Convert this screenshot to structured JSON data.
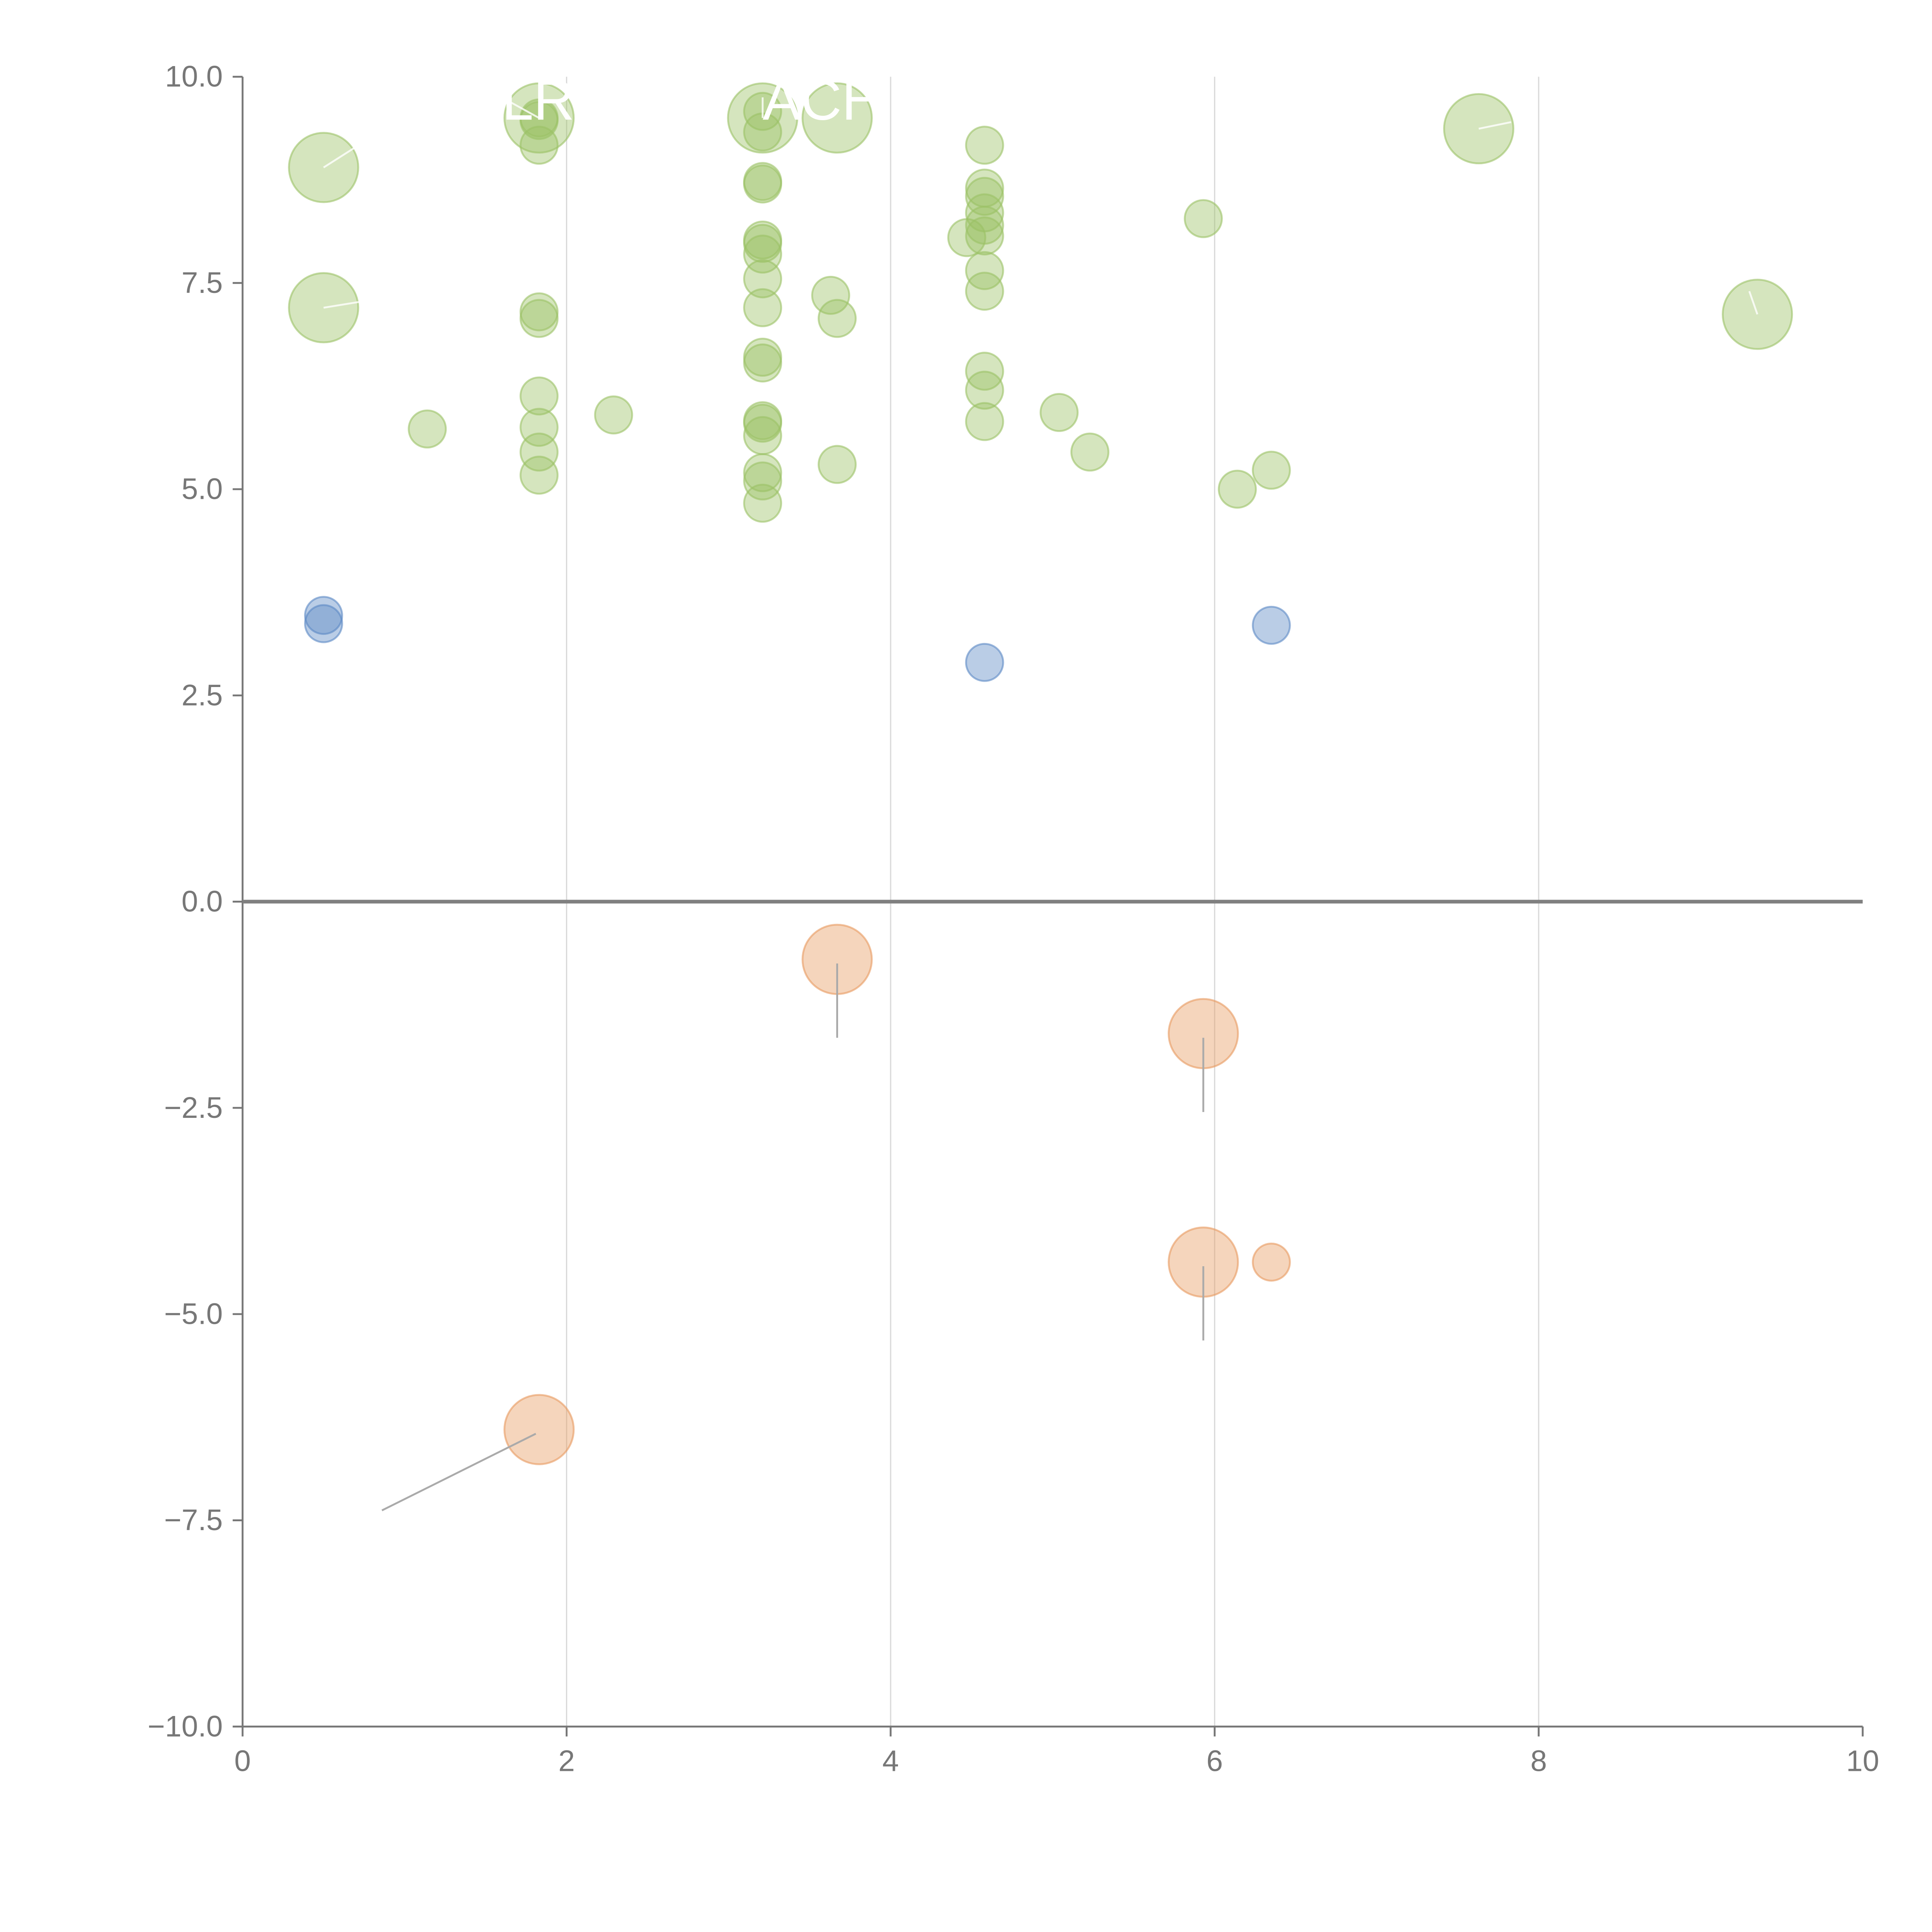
{
  "chart_data": {
    "type": "scatter",
    "title": "",
    "xlabel": "",
    "ylabel": "",
    "xlim": [
      0,
      10
    ],
    "ylim": [
      -10,
      10
    ],
    "x_ticks": [
      0,
      2,
      4,
      6,
      8,
      10
    ],
    "x_tick_labels": [
      "0",
      "2",
      "4",
      "6",
      "8",
      "10"
    ],
    "y_ticks": [
      10,
      7.5,
      5,
      2.5,
      0,
      -2.5,
      -5,
      -7.5,
      -10
    ],
    "y_tick_labels": [
      "10.0",
      "7.5",
      "5.0",
      "2.5",
      "0.0",
      "−2.5",
      "−5.0",
      "−7.5",
      "−10.0"
    ],
    "vertical_grid": true,
    "zero_line": true,
    "colors": {
      "green": "#9bc265",
      "blue": "#5b88c4",
      "orange": "#e89a5f",
      "grid": "#d9d9d9",
      "axis": "#777777",
      "zero": "#808080",
      "leader": "#aaaaaa"
    },
    "series": [
      {
        "name": "green",
        "color": "green",
        "points": [
          [
            0.5,
            8.9,
            2
          ],
          [
            0.5,
            7.2,
            2
          ],
          [
            1.14,
            5.73,
            1
          ],
          [
            1.83,
            9.5,
            2
          ],
          [
            1.83,
            9.5,
            1
          ],
          [
            1.83,
            9.47,
            1
          ],
          [
            1.83,
            9.17,
            1
          ],
          [
            1.83,
            7.15,
            1
          ],
          [
            1.83,
            7.07,
            1
          ],
          [
            1.83,
            6.13,
            1
          ],
          [
            1.83,
            5.75,
            1
          ],
          [
            1.83,
            5.45,
            1
          ],
          [
            1.83,
            5.17,
            1
          ],
          [
            2.29,
            5.9,
            1
          ],
          [
            3.21,
            9.5,
            2
          ],
          [
            3.21,
            9.58,
            1
          ],
          [
            3.21,
            9.33,
            1
          ],
          [
            3.21,
            8.73,
            1
          ],
          [
            3.21,
            8.7,
            1
          ],
          [
            3.21,
            8.02,
            1
          ],
          [
            3.21,
            7.98,
            1
          ],
          [
            3.21,
            7.85,
            1
          ],
          [
            3.21,
            7.55,
            1
          ],
          [
            3.21,
            7.2,
            1
          ],
          [
            3.21,
            6.6,
            1
          ],
          [
            3.21,
            6.53,
            1
          ],
          [
            3.21,
            5.83,
            1
          ],
          [
            3.21,
            5.8,
            1
          ],
          [
            3.21,
            5.65,
            1
          ],
          [
            3.21,
            5.2,
            1
          ],
          [
            3.21,
            5.1,
            1
          ],
          [
            3.21,
            4.83,
            1
          ],
          [
            3.67,
            9.5,
            2
          ],
          [
            3.63,
            7.35,
            1
          ],
          [
            3.67,
            7.07,
            1
          ],
          [
            3.67,
            5.3,
            1
          ],
          [
            4.47,
            8.05,
            1
          ],
          [
            4.58,
            9.17,
            1
          ],
          [
            4.58,
            8.65,
            1
          ],
          [
            4.58,
            8.55,
            1
          ],
          [
            4.58,
            8.35,
            1
          ],
          [
            4.58,
            8.2,
            1
          ],
          [
            4.58,
            8.07,
            1
          ],
          [
            4.58,
            7.65,
            1
          ],
          [
            4.58,
            7.4,
            1
          ],
          [
            4.58,
            6.43,
            1
          ],
          [
            4.58,
            6.2,
            1
          ],
          [
            4.58,
            5.82,
            1
          ],
          [
            5.04,
            5.93,
            1
          ],
          [
            5.23,
            5.45,
            1
          ],
          [
            5.93,
            8.28,
            1
          ],
          [
            6.14,
            5.0,
            1
          ],
          [
            6.35,
            5.23,
            1
          ],
          [
            7.63,
            9.37,
            2
          ],
          [
            9.35,
            7.12,
            2
          ]
        ]
      },
      {
        "name": "blue",
        "color": "blue",
        "points": [
          [
            0.5,
            3.47,
            1
          ],
          [
            0.5,
            3.37,
            1
          ],
          [
            4.58,
            2.9,
            1
          ],
          [
            6.35,
            3.35,
            1
          ]
        ]
      },
      {
        "name": "orange",
        "color": "orange",
        "points": [
          [
            3.67,
            -0.7,
            2
          ],
          [
            5.93,
            -1.6,
            2
          ],
          [
            5.93,
            -4.37,
            2
          ],
          [
            6.35,
            -4.37,
            1
          ],
          [
            1.83,
            -6.4,
            2
          ]
        ]
      }
    ],
    "annotations": [
      {
        "text": "LR",
        "x": 1.83,
        "y": 9.5,
        "label_x": 1.6,
        "label_y": 9.75,
        "anchor": "start"
      },
      {
        "text": "ACH",
        "x": 3.21,
        "y": 9.5,
        "label_x": 3.21,
        "label_y": 9.75,
        "anchor": "start"
      },
      {
        "text": "",
        "x": 0.5,
        "y": 8.9,
        "label_x": 0.7,
        "label_y": 9.15,
        "anchor": "start"
      },
      {
        "text": "",
        "x": 0.5,
        "y": 7.2,
        "label_x": 0.72,
        "label_y": 7.27,
        "anchor": "start"
      },
      {
        "text": "",
        "x": 7.63,
        "y": 9.37,
        "label_x": 7.83,
        "label_y": 9.45,
        "anchor": "start"
      },
      {
        "text": "",
        "x": 9.35,
        "y": 7.12,
        "label_x": 9.3,
        "label_y": 7.4,
        "anchor": "start"
      },
      {
        "text": "",
        "x": 3.67,
        "y": -0.75,
        "label_x": 3.67,
        "label_y": -1.65,
        "anchor": "start"
      },
      {
        "text": "",
        "x": 5.93,
        "y": -1.65,
        "label_x": 5.93,
        "label_y": -2.55,
        "anchor": "start"
      },
      {
        "text": "",
        "x": 5.93,
        "y": -4.42,
        "label_x": 5.93,
        "label_y": -5.32,
        "anchor": "start"
      },
      {
        "text": "",
        "x": 1.81,
        "y": -6.45,
        "label_x": 0.86,
        "label_y": -7.38,
        "anchor": "start"
      }
    ]
  }
}
